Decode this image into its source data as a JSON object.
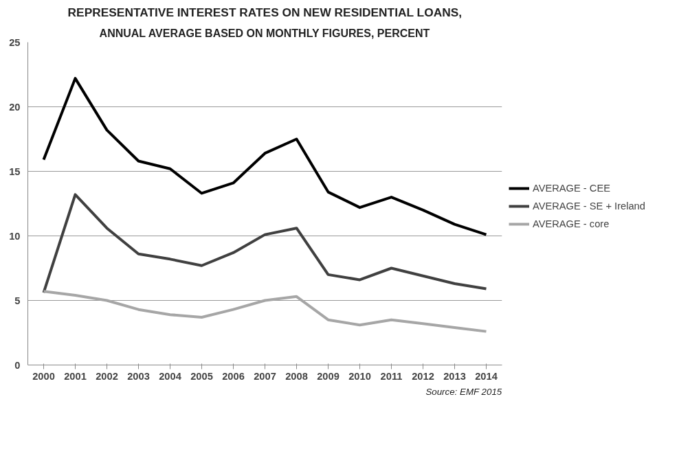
{
  "chart_data": {
    "type": "line",
    "title": "REPRESENTATIVE INTEREST RATES ON NEW RESIDENTIAL LOANS,",
    "subtitle": "ANNUAL AVERAGE BASED ON MONTHLY FIGURES, PERCENT",
    "categories": [
      "2000",
      "2001",
      "2002",
      "2003",
      "2004",
      "2005",
      "2006",
      "2007",
      "2008",
      "2009",
      "2010",
      "2011",
      "2012",
      "2013",
      "2014"
    ],
    "series": [
      {
        "name": "AVERAGE - CEE",
        "color": "#000000",
        "values": [
          15.9,
          22.2,
          18.2,
          15.8,
          15.2,
          13.3,
          14.1,
          16.4,
          17.5,
          13.4,
          12.2,
          13.0,
          12.0,
          10.9,
          10.1
        ]
      },
      {
        "name": "AVERAGE - SE + Ireland",
        "color": "#404040",
        "values": [
          5.6,
          13.2,
          10.6,
          8.6,
          8.2,
          7.7,
          8.7,
          10.1,
          10.6,
          7.0,
          6.6,
          7.5,
          6.9,
          6.3,
          5.9
        ]
      },
      {
        "name": "AVERAGE - core",
        "color": "#a6a6a6",
        "values": [
          5.7,
          5.4,
          5.0,
          4.3,
          3.9,
          3.7,
          4.3,
          5.0,
          5.3,
          3.5,
          3.1,
          3.5,
          3.2,
          2.9,
          2.6
        ]
      }
    ],
    "ylim": [
      0,
      25
    ],
    "yticks": [
      0,
      5,
      10,
      15,
      20,
      25
    ],
    "grid": "y",
    "legend": "right",
    "marker": "none",
    "line_style": "solid",
    "annotations": [
      "Source: EMF 2015"
    ]
  }
}
